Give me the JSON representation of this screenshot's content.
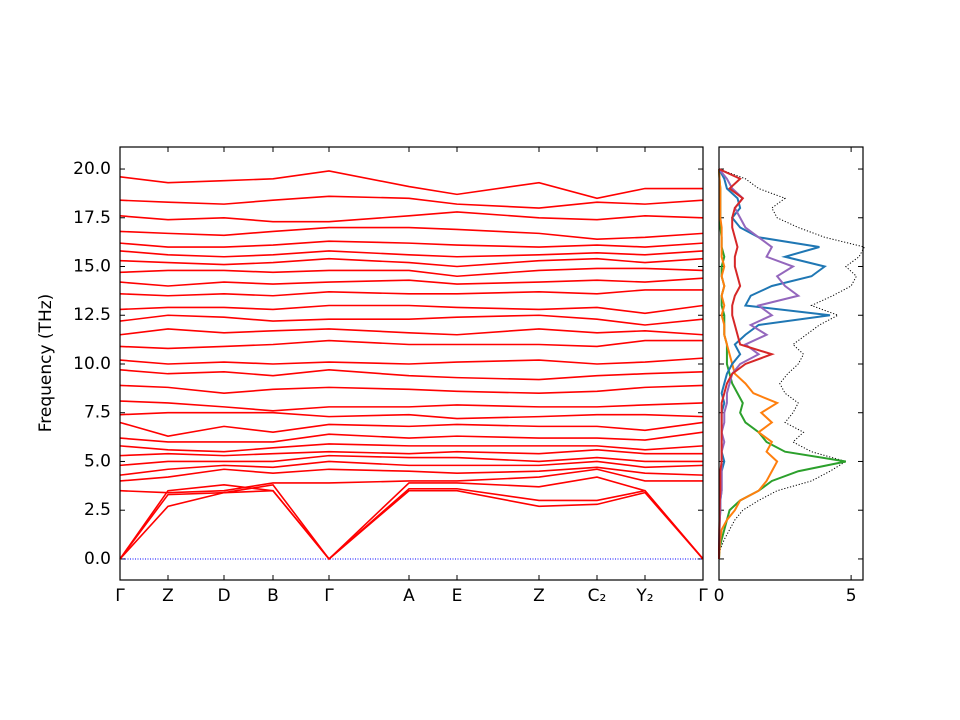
{
  "chart_data": [
    {
      "type": "line",
      "ylabel": "Frequency (THz)",
      "color": "red",
      "x": [
        0,
        0.48,
        1.04,
        1.53,
        2.09,
        2.89,
        3.37,
        4.19,
        4.77,
        5.25,
        5.83
      ],
      "xlim": [
        0,
        5.83
      ],
      "xticks": [
        {
          "value": 0,
          "label": "Γ"
        },
        {
          "value": 0.48,
          "label": "Z"
        },
        {
          "value": 1.04,
          "label": "D"
        },
        {
          "value": 1.53,
          "label": "B"
        },
        {
          "value": 2.09,
          "label": "Γ"
        },
        {
          "value": 2.89,
          "label": "A"
        },
        {
          "value": 3.37,
          "label": "E"
        },
        {
          "value": 4.19,
          "label": "Z"
        },
        {
          "value": 4.77,
          "label": "C₂"
        },
        {
          "value": 5.25,
          "label": "Y₂"
        },
        {
          "value": 5.83,
          "label": "Γ"
        }
      ],
      "ylim": [
        -1.08,
        21.13
      ],
      "yticks": [
        {
          "value": 0,
          "label": "0.0"
        },
        2.5,
        {
          "value": 5,
          "label": "5.0"
        },
        7.5,
        {
          "value": 10,
          "label": "10.0"
        },
        12.5,
        {
          "value": 15,
          "label": "15.0"
        },
        17.5,
        {
          "value": 20,
          "label": "20.0"
        }
      ],
      "series": [
        {
          "values": [
            0,
            3.3,
            3.4,
            3.5,
            0,
            3.5,
            3.5,
            2.7,
            2.8,
            3.4,
            0
          ]
        },
        {
          "values": [
            0,
            3.5,
            3.8,
            3.5,
            0,
            3.6,
            3.6,
            3.0,
            3.0,
            3.5,
            0
          ]
        },
        {
          "values": [
            0,
            2.7,
            3.4,
            3.8,
            0,
            3.9,
            3.9,
            3.7,
            4.2,
            3.5,
            0
          ]
        },
        {
          "values": [
            3.5,
            3.4,
            3.5,
            3.9,
            3.9,
            4.0,
            4.0,
            4.2,
            4.6,
            4.0,
            4.0
          ]
        },
        {
          "values": [
            4.0,
            4.2,
            4.6,
            4.4,
            4.6,
            4.5,
            4.4,
            4.5,
            4.7,
            4.4,
            4.3
          ]
        },
        {
          "values": [
            4.3,
            4.6,
            4.8,
            4.7,
            5.0,
            4.8,
            4.8,
            4.8,
            5.0,
            4.7,
            4.8
          ]
        },
        {
          "values": [
            4.8,
            5.0,
            5.0,
            5.0,
            5.3,
            5.2,
            5.2,
            5.0,
            5.2,
            5.0,
            5.0
          ]
        },
        {
          "values": [
            5.3,
            5.4,
            5.3,
            5.4,
            5.5,
            5.4,
            5.5,
            5.4,
            5.6,
            5.4,
            5.4
          ]
        },
        {
          "values": [
            5.8,
            5.6,
            5.5,
            5.7,
            5.9,
            5.8,
            5.8,
            5.8,
            5.8,
            5.6,
            5.8
          ]
        },
        {
          "values": [
            6.2,
            6.0,
            6.0,
            6.0,
            6.4,
            6.2,
            6.3,
            6.2,
            6.2,
            6.1,
            6.5
          ]
        },
        {
          "values": [
            7.0,
            6.3,
            6.8,
            6.5,
            6.9,
            6.8,
            6.9,
            6.8,
            6.8,
            6.6,
            7.0
          ]
        },
        {
          "values": [
            7.4,
            7.5,
            7.5,
            7.5,
            7.3,
            7.4,
            7.2,
            7.3,
            7.4,
            7.4,
            7.3
          ]
        },
        {
          "values": [
            8.1,
            8.0,
            7.8,
            7.6,
            7.8,
            7.8,
            7.9,
            7.8,
            7.8,
            7.9,
            8.0
          ]
        },
        {
          "values": [
            8.9,
            8.8,
            8.5,
            8.7,
            8.8,
            8.7,
            8.6,
            8.5,
            8.6,
            8.8,
            8.9
          ]
        },
        {
          "values": [
            9.7,
            9.5,
            9.6,
            9.4,
            9.7,
            9.4,
            9.3,
            9.2,
            9.4,
            9.5,
            9.6
          ]
        },
        {
          "values": [
            10.2,
            10.0,
            10.1,
            10.0,
            10.1,
            10.0,
            10.1,
            10.2,
            10.0,
            10.1,
            10.3
          ]
        },
        {
          "values": [
            10.9,
            10.8,
            10.9,
            11.0,
            11.2,
            11.0,
            11.0,
            11.0,
            10.9,
            11.2,
            11.2
          ]
        },
        {
          "values": [
            11.5,
            11.8,
            11.6,
            11.7,
            11.8,
            11.6,
            11.5,
            11.8,
            11.6,
            11.7,
            11.5
          ]
        },
        {
          "values": [
            12.2,
            12.5,
            12.4,
            12.2,
            12.3,
            12.3,
            12.4,
            12.5,
            12.3,
            12.0,
            12.3
          ]
        },
        {
          "values": [
            12.8,
            12.9,
            12.9,
            12.8,
            13.0,
            13.0,
            12.9,
            12.8,
            12.9,
            12.6,
            13.0
          ]
        },
        {
          "values": [
            13.6,
            13.5,
            13.6,
            13.5,
            13.7,
            13.6,
            13.6,
            13.7,
            13.6,
            13.8,
            13.8
          ]
        },
        {
          "values": [
            14.2,
            14.0,
            14.2,
            14.1,
            14.2,
            14.3,
            14.1,
            14.2,
            14.3,
            14.2,
            14.4
          ]
        },
        {
          "values": [
            14.7,
            14.8,
            14.8,
            14.7,
            14.8,
            14.8,
            14.5,
            14.8,
            14.9,
            14.9,
            14.8
          ]
        },
        {
          "values": [
            15.3,
            15.2,
            15.1,
            15.2,
            15.4,
            15.2,
            15.0,
            15.3,
            15.4,
            15.2,
            15.4
          ]
        },
        {
          "values": [
            15.8,
            15.6,
            15.5,
            15.6,
            15.8,
            15.6,
            15.5,
            15.6,
            15.7,
            15.6,
            15.8
          ]
        },
        {
          "values": [
            16.2,
            16.0,
            16.0,
            16.1,
            16.3,
            16.2,
            16.1,
            16.0,
            16.1,
            16.0,
            16.2
          ]
        },
        {
          "values": [
            16.8,
            16.7,
            16.6,
            16.8,
            17.0,
            17.0,
            16.9,
            16.7,
            16.4,
            16.5,
            16.7
          ]
        },
        {
          "values": [
            17.6,
            17.4,
            17.5,
            17.3,
            17.3,
            17.6,
            17.8,
            17.5,
            17.4,
            17.6,
            17.5
          ]
        },
        {
          "values": [
            18.4,
            18.3,
            18.2,
            18.4,
            18.6,
            18.5,
            18.2,
            18.0,
            18.3,
            18.2,
            18.4
          ]
        },
        {
          "values": [
            19.6,
            19.3,
            19.4,
            19.5,
            19.9,
            19.1,
            18.7,
            19.3,
            18.5,
            19.0,
            19.0
          ]
        }
      ]
    },
    {
      "type": "line",
      "orientation": "horizontal",
      "y": [
        0,
        0.5,
        1,
        1.5,
        2,
        2.5,
        3,
        3.5,
        4,
        4.5,
        5,
        5.5,
        6,
        6.5,
        7,
        7.5,
        8,
        8.5,
        9,
        9.5,
        10,
        10.5,
        11,
        11.5,
        12,
        12.5,
        13,
        13.5,
        14,
        14.5,
        15,
        15.5,
        16,
        16.5,
        17,
        17.5,
        18,
        18.5,
        19,
        19.5,
        20
      ],
      "xlim": [
        0,
        5.45
      ],
      "xticks": [
        0,
        5
      ],
      "ylim": [
        -1.08,
        21.13
      ],
      "yticks": [
        0,
        2.5,
        5,
        7.5,
        10,
        12.5,
        15,
        17.5,
        20
      ],
      "series": [
        {
          "color": "black",
          "style": "dotted",
          "values": [
            0,
            0.05,
            0.2,
            0.4,
            0.6,
            0.9,
            1.5,
            2.2,
            3.5,
            4.2,
            4.8,
            3.5,
            2.8,
            3.2,
            2.5,
            2.8,
            3.0,
            2.5,
            2.3,
            2.6,
            3.0,
            3.2,
            2.8,
            3.3,
            3.8,
            4.5,
            3.5,
            4.3,
            5.0,
            5.2,
            4.8,
            5.3,
            5.5,
            4.0,
            3.0,
            2.2,
            2.0,
            2.5,
            1.5,
            1.0,
            0
          ]
        },
        {
          "color": "#2ca02c",
          "style": "solid",
          "values": [
            0,
            0.02,
            0.1,
            0.2,
            0.3,
            0.4,
            0.8,
            1.5,
            2.0,
            3.0,
            4.8,
            2.5,
            1.8,
            1.5,
            1.0,
            0.8,
            0.9,
            0.7,
            0.5,
            0.4,
            0.3,
            0.3,
            0.3,
            0.2,
            0.2,
            0.2,
            0.1,
            0.1,
            0.2,
            0.1,
            0.1,
            0.2,
            0.1,
            0.1,
            0.05,
            0.05,
            0.05,
            0.05,
            0.05,
            0.02,
            0
          ]
        },
        {
          "color": "#ff7f0e",
          "style": "solid",
          "values": [
            0,
            0.02,
            0.05,
            0.1,
            0.3,
            0.6,
            0.8,
            1.5,
            1.8,
            2.0,
            2.2,
            1.8,
            2.0,
            1.5,
            2.0,
            1.6,
            2.2,
            1.3,
            1.0,
            0.6,
            0.5,
            0.4,
            0.3,
            0.2,
            0.2,
            0.1,
            0.2,
            0.1,
            0.2,
            0.1,
            0.2,
            0.1,
            0.1,
            0.1,
            0.1,
            0.05,
            0.05,
            0.05,
            0.05,
            0.02,
            0
          ]
        },
        {
          "color": "#1f77b4",
          "style": "solid",
          "values": [
            0,
            0,
            0.01,
            0.02,
            0.03,
            0.05,
            0.05,
            0.1,
            0.1,
            0.1,
            0.2,
            0.1,
            0.1,
            0.1,
            0.1,
            0.1,
            0.2,
            0.1,
            0.2,
            0.3,
            0.5,
            0.8,
            0.6,
            1.0,
            1.5,
            4.2,
            1.0,
            1.2,
            2.0,
            3.5,
            4.0,
            2.5,
            3.8,
            1.5,
            0.8,
            0.5,
            0.8,
            0.7,
            0.3,
            0.2,
            0
          ]
        },
        {
          "color": "#9467bd",
          "style": "solid",
          "values": [
            0,
            0,
            0.01,
            0.02,
            0.03,
            0.05,
            0.05,
            0.1,
            0.1,
            0.1,
            0.1,
            0.1,
            0.2,
            0.1,
            0.2,
            0.2,
            0.3,
            0.3,
            0.4,
            0.5,
            0.8,
            1.5,
            1.0,
            1.8,
            1.2,
            2.0,
            1.5,
            3.0,
            2.5,
            2.2,
            2.8,
            1.8,
            2.0,
            1.5,
            1.0,
            0.8,
            0.6,
            0.9,
            0.5,
            0.3,
            0
          ]
        },
        {
          "color": "#d62728",
          "style": "solid",
          "values": [
            0,
            0,
            0.01,
            0.01,
            0.02,
            0.02,
            0.03,
            0.05,
            0.05,
            0.05,
            0.1,
            0.1,
            0.1,
            0.1,
            0.1,
            0.1,
            0.1,
            0.2,
            0.3,
            0.5,
            1.0,
            2.0,
            0.8,
            0.7,
            0.6,
            0.5,
            0.5,
            0.6,
            0.8,
            0.7,
            0.6,
            0.6,
            0.7,
            0.6,
            0.5,
            0.5,
            0.6,
            0.9,
            0.4,
            0.8,
            0
          ]
        }
      ]
    }
  ]
}
